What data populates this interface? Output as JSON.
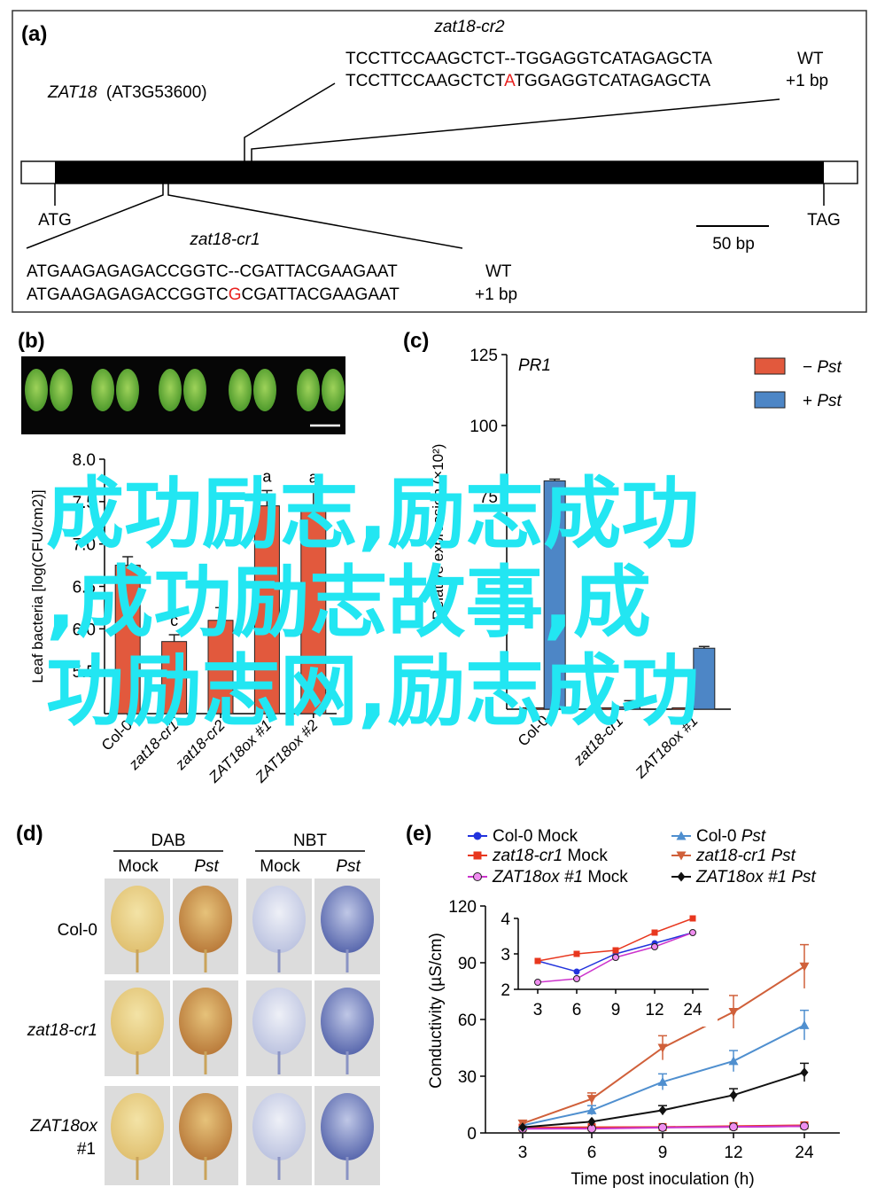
{
  "panel_a": {
    "label": "(a)",
    "gene_name": "ZAT18",
    "gene_locus": "(AT3G53600)",
    "start_codon": "ATG",
    "stop_codon": "TAG",
    "scale_bar": "50 bp",
    "cr2": {
      "title": "zat18-cr2",
      "wt_seq": "TCCTTCCAAGCTCT--TGGAGGTCATAGAGCTA",
      "mut_seq_pre": "TCCTTCCAAGCTCT",
      "mut_insert": "A",
      "mut_seq_post": "TGGAGGTCATAGAGCTA",
      "wt_label": "WT",
      "mut_label": "+1 bp"
    },
    "cr1": {
      "title": "zat18-cr1",
      "wt_seq": "ATGAAGAGAGACCGGTC--CGATTACGAAGAAT",
      "mut_seq_pre": "ATGAAGAGAGACCGGTC",
      "mut_insert": "G",
      "mut_seq_post": "CGATTACGAAGAAT",
      "wt_label": "WT",
      "mut_label": "+1 bp"
    },
    "colors": {
      "insert": "#e8201e",
      "gene_bar": "#000000"
    }
  },
  "panel_b": {
    "label": "(b)",
    "chart_data": {
      "type": "bar",
      "ylabel": "Leaf bacteria [log(CFU/cm2)]",
      "ylim": [
        5.0,
        8.0
      ],
      "yticks": [
        "8.0",
        "7.5",
        "7.0",
        "6.5",
        "6.0",
        "5.5"
      ],
      "categories": [
        "Col-0",
        "zat18-cr1",
        "zat18-cr2",
        "ZAT18ox #1",
        "ZAT18ox #2"
      ],
      "values": [
        6.75,
        5.85,
        6.1,
        7.45,
        7.42
      ],
      "errors": [
        0.1,
        0.08,
        0.15,
        0.18,
        0.2
      ],
      "letters": [
        "",
        "c",
        "",
        "a",
        "a"
      ],
      "bar_color": "#e2593d"
    }
  },
  "panel_c": {
    "label": "(c)",
    "chart_data": {
      "type": "bar",
      "title": "PR1",
      "ylabel": "Relative expression (×10²)",
      "ylim": [
        0,
        125
      ],
      "yticks": [
        "125",
        "100",
        "75"
      ],
      "categories": [
        "Col-0",
        "zat18-cr1",
        "ZAT18ox #1"
      ],
      "series": [
        {
          "name": "− Pst",
          "color": "#e2593d",
          "values": [
            0.5,
            0.5,
            0.5
          ]
        },
        {
          "name": "+ Pst",
          "color": "#4d86c6",
          "values": [
            80.5,
            0.8,
            21.5
          ]
        }
      ],
      "errors": [
        0.6,
        2.2,
        0.6
      ],
      "legend": [
        "− Pst",
        "+ Pst"
      ],
      "legend_placement": "top-right"
    }
  },
  "panel_d": {
    "label": "(d)",
    "stains": [
      "DAB",
      "NBT"
    ],
    "treatments": [
      "Mock",
      "Pst",
      "Mock",
      "Pst"
    ],
    "rows": [
      "Col-0",
      "zat18-cr1",
      "ZAT18ox",
      "#1"
    ]
  },
  "panel_e": {
    "label": "(e)",
    "chart_data": {
      "type": "line",
      "xlabel": "Time post inoculation (h)",
      "ylabel": "Conductivity (µS/cm)",
      "x": [
        3,
        6,
        9,
        12,
        24
      ],
      "ylim": [
        0,
        120
      ],
      "yticks": [
        "0",
        "30",
        "60",
        "90",
        "120"
      ],
      "series": [
        {
          "name": "Col-0 Mock",
          "color": "#2233dd",
          "marker": "circle",
          "values": [
            2.8,
            2.5,
            3.0,
            3.3,
            3.6
          ]
        },
        {
          "name": "zat18-cr1 Mock",
          "color": "#e8371e",
          "marker": "square",
          "values": [
            2.8,
            3.0,
            3.1,
            3.6,
            4.0
          ]
        },
        {
          "name": "ZAT18ox #1 Mock",
          "color": "#cc33cc",
          "marker": "circle-open",
          "values": [
            2.2,
            2.3,
            2.9,
            3.2,
            3.6
          ]
        },
        {
          "name": "Col-0 Pst",
          "color": "#4f8fcf",
          "marker": "triangle-up",
          "values": [
            4,
            12,
            27,
            38,
            57
          ]
        },
        {
          "name": "zat18-cr1 Pst",
          "color": "#d0603a",
          "marker": "triangle-down",
          "values": [
            5,
            18,
            45,
            64,
            88
          ]
        },
        {
          "name": "ZAT18ox #1 Pst",
          "color": "#111111",
          "marker": "diamond",
          "values": [
            3,
            6,
            12,
            20,
            32
          ]
        }
      ],
      "inset": {
        "ylim": [
          2,
          4
        ],
        "yticks": [
          "4",
          "3",
          "2"
        ],
        "xticks": [
          "3",
          "6",
          "9",
          "12",
          "24"
        ]
      }
    }
  },
  "watermark": [
    "成功励志,励志成功",
    ",成功励志故事,成",
    "功励志网,励志成功"
  ]
}
